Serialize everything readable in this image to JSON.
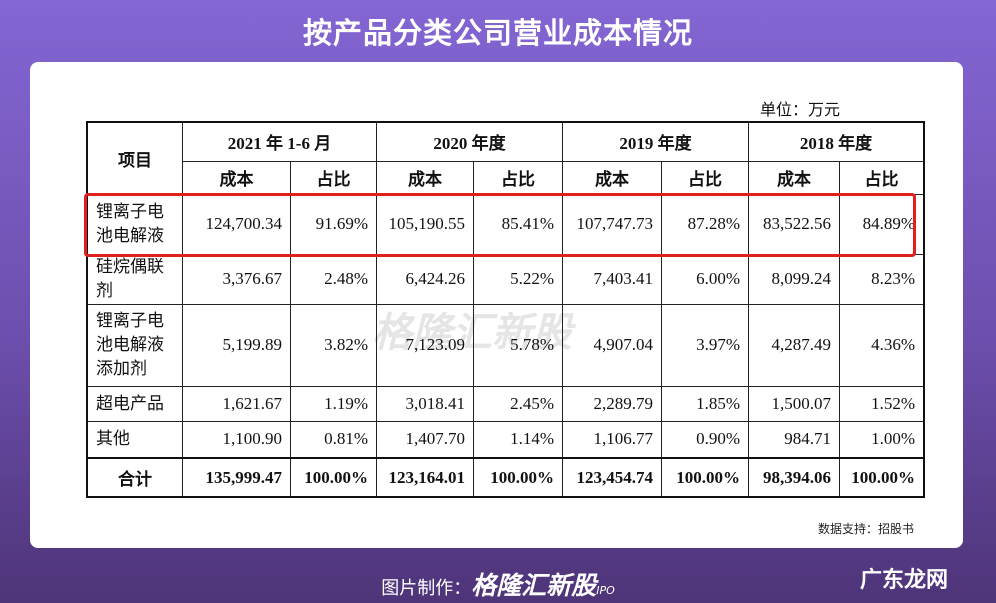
{
  "title": "按产品分类公司营业成本情况",
  "unit": "单位：万元",
  "table": {
    "item_header": "项目",
    "periods": [
      "2021 年 1-6 月",
      "2020 年度",
      "2019 年度",
      "2018 年度"
    ],
    "sub_headers": [
      "成本",
      "占比",
      "成本",
      "占比",
      "成本",
      "占比",
      "成本",
      "占比"
    ],
    "rows": [
      [
        "锂离子电池电解液",
        "124,700.34",
        "91.69%",
        "105,190.55",
        "85.41%",
        "107,747.73",
        "87.28%",
        "83,522.56",
        "84.89%"
      ],
      [
        "硅烷偶联剂",
        "3,376.67",
        "2.48%",
        "6,424.26",
        "5.22%",
        "7,403.41",
        "6.00%",
        "8,099.24",
        "8.23%"
      ],
      [
        "锂离子电池电解液添加剂",
        "5,199.89",
        "3.82%",
        "7,123.09",
        "5.78%",
        "4,907.04",
        "3.97%",
        "4,287.49",
        "4.36%"
      ],
      [
        "超电产品",
        "1,621.67",
        "1.19%",
        "3,018.41",
        "2.45%",
        "2,289.79",
        "1.85%",
        "1,500.07",
        "1.52%"
      ],
      [
        "其他",
        "1,100.90",
        "0.81%",
        "1,407.70",
        "1.14%",
        "1,106.77",
        "0.90%",
        "984.71",
        "1.00%"
      ],
      [
        "合计",
        "135,999.47",
        "100.00%",
        "123,164.01",
        "100.00%",
        "123,454.74",
        "100.00%",
        "98,394.06",
        "100.00%"
      ]
    ]
  },
  "source": "数据支持：招股书",
  "watermark_center": "格隆汇新股",
  "footer": {
    "label": "图片制作：",
    "brand": "格隆汇新股",
    "tag": "IPO"
  },
  "corner_watermark": "广东龙网"
}
